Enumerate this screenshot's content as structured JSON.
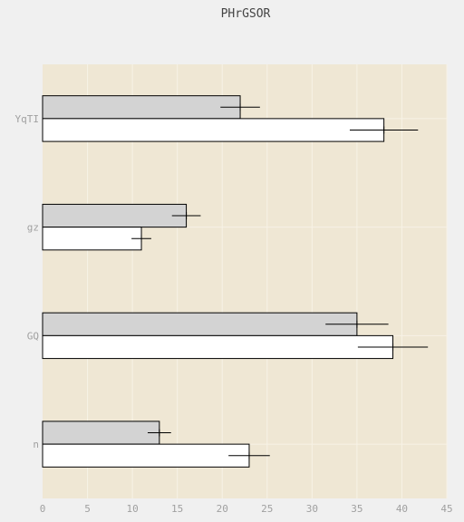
{
  "chart_data": {
    "type": "bar",
    "orientation": "horizontal",
    "title": "PHrGSOR",
    "xlabel": "",
    "ylabel": "",
    "categories": [
      "YqTI",
      "gz",
      "GQ",
      "n"
    ],
    "xlim": [
      0,
      45
    ],
    "xticks": [
      0,
      5,
      10,
      15,
      20,
      25,
      30,
      35,
      40,
      45
    ],
    "grid": true,
    "series": [
      {
        "color": "#d3d3d3",
        "values": [
          22,
          16,
          35,
          13
        ],
        "errors": [
          2.2,
          1.6,
          3.5,
          1.3
        ]
      },
      {
        "color": "#ffffff",
        "values": [
          38,
          11,
          39,
          23
        ],
        "errors": [
          3.8,
          1.1,
          3.9,
          2.3
        ]
      }
    ],
    "colors": {
      "plot_bg": "#efe7d4",
      "page_bg": "#f0f0f0",
      "grid": "#f7f2e6",
      "bar_edge": "#000000",
      "tick_text": "#a0a0a0"
    }
  }
}
